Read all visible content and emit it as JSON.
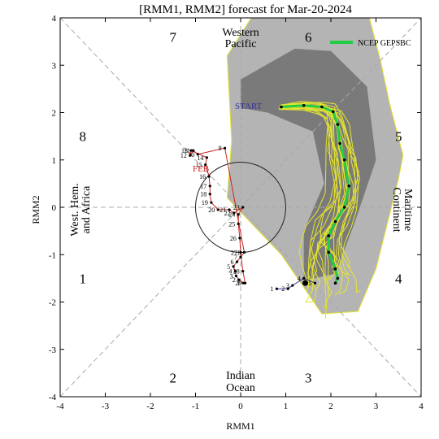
{
  "chart_data": {
    "type": "line",
    "title": "[RMM1, RMM2] forecast for Mar-20-2024",
    "xlabel": "RMM1",
    "ylabel": "RMM2",
    "xlim": [
      -4,
      4
    ],
    "ylim": [
      -4,
      4
    ],
    "xticks": [
      "-4",
      "-3",
      "-2",
      "-1",
      "0",
      "1",
      "2",
      "3",
      "4"
    ],
    "yticks": [
      "-4",
      "-3",
      "-2",
      "-1",
      "0",
      "1",
      "2",
      "3",
      "4"
    ],
    "grid": false,
    "legend_position": "top-right",
    "phases": [
      {
        "label": "1",
        "x": -3.5,
        "y": -1.5
      },
      {
        "label": "2",
        "x": -1.5,
        "y": -3.6
      },
      {
        "label": "3",
        "x": 1.5,
        "y": -3.6
      },
      {
        "label": "4",
        "x": 3.5,
        "y": -1.5
      },
      {
        "label": "5",
        "x": 3.5,
        "y": 1.5
      },
      {
        "label": "6",
        "x": 1.5,
        "y": 3.6
      },
      {
        "label": "7",
        "x": -1.5,
        "y": 3.6
      },
      {
        "label": "8",
        "x": -3.5,
        "y": 1.5
      }
    ],
    "regions": {
      "top": [
        "Western",
        "Pacific"
      ],
      "bottom": [
        "Indian",
        "Ocean"
      ],
      "left": [
        "West. Hem.",
        "and Africa"
      ],
      "right": [
        "Maritime",
        "Continent"
      ]
    },
    "annotations": {
      "start": "START",
      "feb": "FEB"
    },
    "colors": {
      "feb": "#cc2222",
      "march": "#333399",
      "ensemble_mean": "#22cc44",
      "members": "#e6e62e",
      "spread_outer": "#b4b4b4",
      "spread_inner": "#7a7a7a",
      "obs_point": "#000000"
    },
    "series": [
      {
        "name": "",
        "role": "observed-feb",
        "points": [
          {
            "x": 0.06,
            "y": -1.6,
            "label": "1"
          },
          {
            "x": -0.04,
            "y": -1.53,
            "label": "2"
          },
          {
            "x": -0.1,
            "y": -1.45,
            "label": "3"
          },
          {
            "x": -0.12,
            "y": -1.35,
            "label": "4"
          },
          {
            "x": -0.16,
            "y": -1.25,
            "label": "5"
          },
          {
            "x": -0.08,
            "y": -1.15,
            "label": "6"
          },
          {
            "x": 0.0,
            "y": -1.05,
            "label": "7"
          },
          {
            "x": 0.08,
            "y": -0.95,
            "label": "8"
          },
          {
            "x": -0.35,
            "y": 1.25,
            "label": "9"
          },
          {
            "x": -0.95,
            "y": 1.12,
            "label": "10"
          },
          {
            "x": -1.05,
            "y": 1.2,
            "label": "11"
          },
          {
            "x": -1.12,
            "y": 1.1,
            "label": "12"
          },
          {
            "x": -1.1,
            "y": 1.2,
            "label": "13"
          },
          {
            "x": -0.75,
            "y": 1.05,
            "label": "14"
          },
          {
            "x": -0.78,
            "y": 0.9,
            "label": "15"
          },
          {
            "x": -0.7,
            "y": 0.65,
            "label": "16"
          },
          {
            "x": -0.68,
            "y": 0.45,
            "label": "17"
          },
          {
            "x": -0.68,
            "y": 0.28,
            "label": "18"
          },
          {
            "x": -0.65,
            "y": 0.1,
            "label": "19"
          },
          {
            "x": -0.5,
            "y": -0.05,
            "label": "20"
          },
          {
            "x": -0.25,
            "y": -0.05,
            "label": "21"
          },
          {
            "x": -0.15,
            "y": -0.12,
            "label": "22"
          },
          {
            "x": 0.05,
            "y": 0.0,
            "label": "23"
          },
          {
            "x": -0.05,
            "y": -0.15,
            "label": "24"
          },
          {
            "x": -0.05,
            "y": -0.35,
            "label": "25"
          },
          {
            "x": -0.02,
            "y": -0.65,
            "label": "26"
          },
          {
            "x": 0.0,
            "y": -0.95,
            "label": "27"
          },
          {
            "x": 0.05,
            "y": -1.35,
            "label": "28"
          },
          {
            "x": 0.1,
            "y": -1.6,
            "label": "29"
          }
        ]
      },
      {
        "name": "",
        "role": "observed-mar",
        "points": [
          {
            "x": 0.8,
            "y": -1.72,
            "label": "1"
          },
          {
            "x": 1.05,
            "y": -1.72,
            "label": "2"
          },
          {
            "x": 1.15,
            "y": -1.65,
            "label": "3"
          },
          {
            "x": 1.4,
            "y": -1.5,
            "label": "4"
          },
          {
            "x": 1.65,
            "y": -1.6,
            "label": "5"
          }
        ]
      },
      {
        "name": "NCEP GEPSBC",
        "role": "ensemble-mean",
        "points": [
          {
            "x": 0.9,
            "y": 2.12
          },
          {
            "x": 1.4,
            "y": 2.15
          },
          {
            "x": 1.8,
            "y": 2.12
          },
          {
            "x": 2.05,
            "y": 2.02
          },
          {
            "x": 2.15,
            "y": 1.75
          },
          {
            "x": 2.2,
            "y": 1.35
          },
          {
            "x": 2.3,
            "y": 1.0
          },
          {
            "x": 2.4,
            "y": 0.45
          },
          {
            "x": 2.3,
            "y": 0.0
          },
          {
            "x": 2.1,
            "y": -0.3
          },
          {
            "x": 1.95,
            "y": -0.6
          },
          {
            "x": 1.95,
            "y": -0.95
          },
          {
            "x": 2.1,
            "y": -1.3
          },
          {
            "x": 2.15,
            "y": -1.5
          },
          {
            "x": 2.1,
            "y": -1.6
          }
        ]
      }
    ]
  }
}
